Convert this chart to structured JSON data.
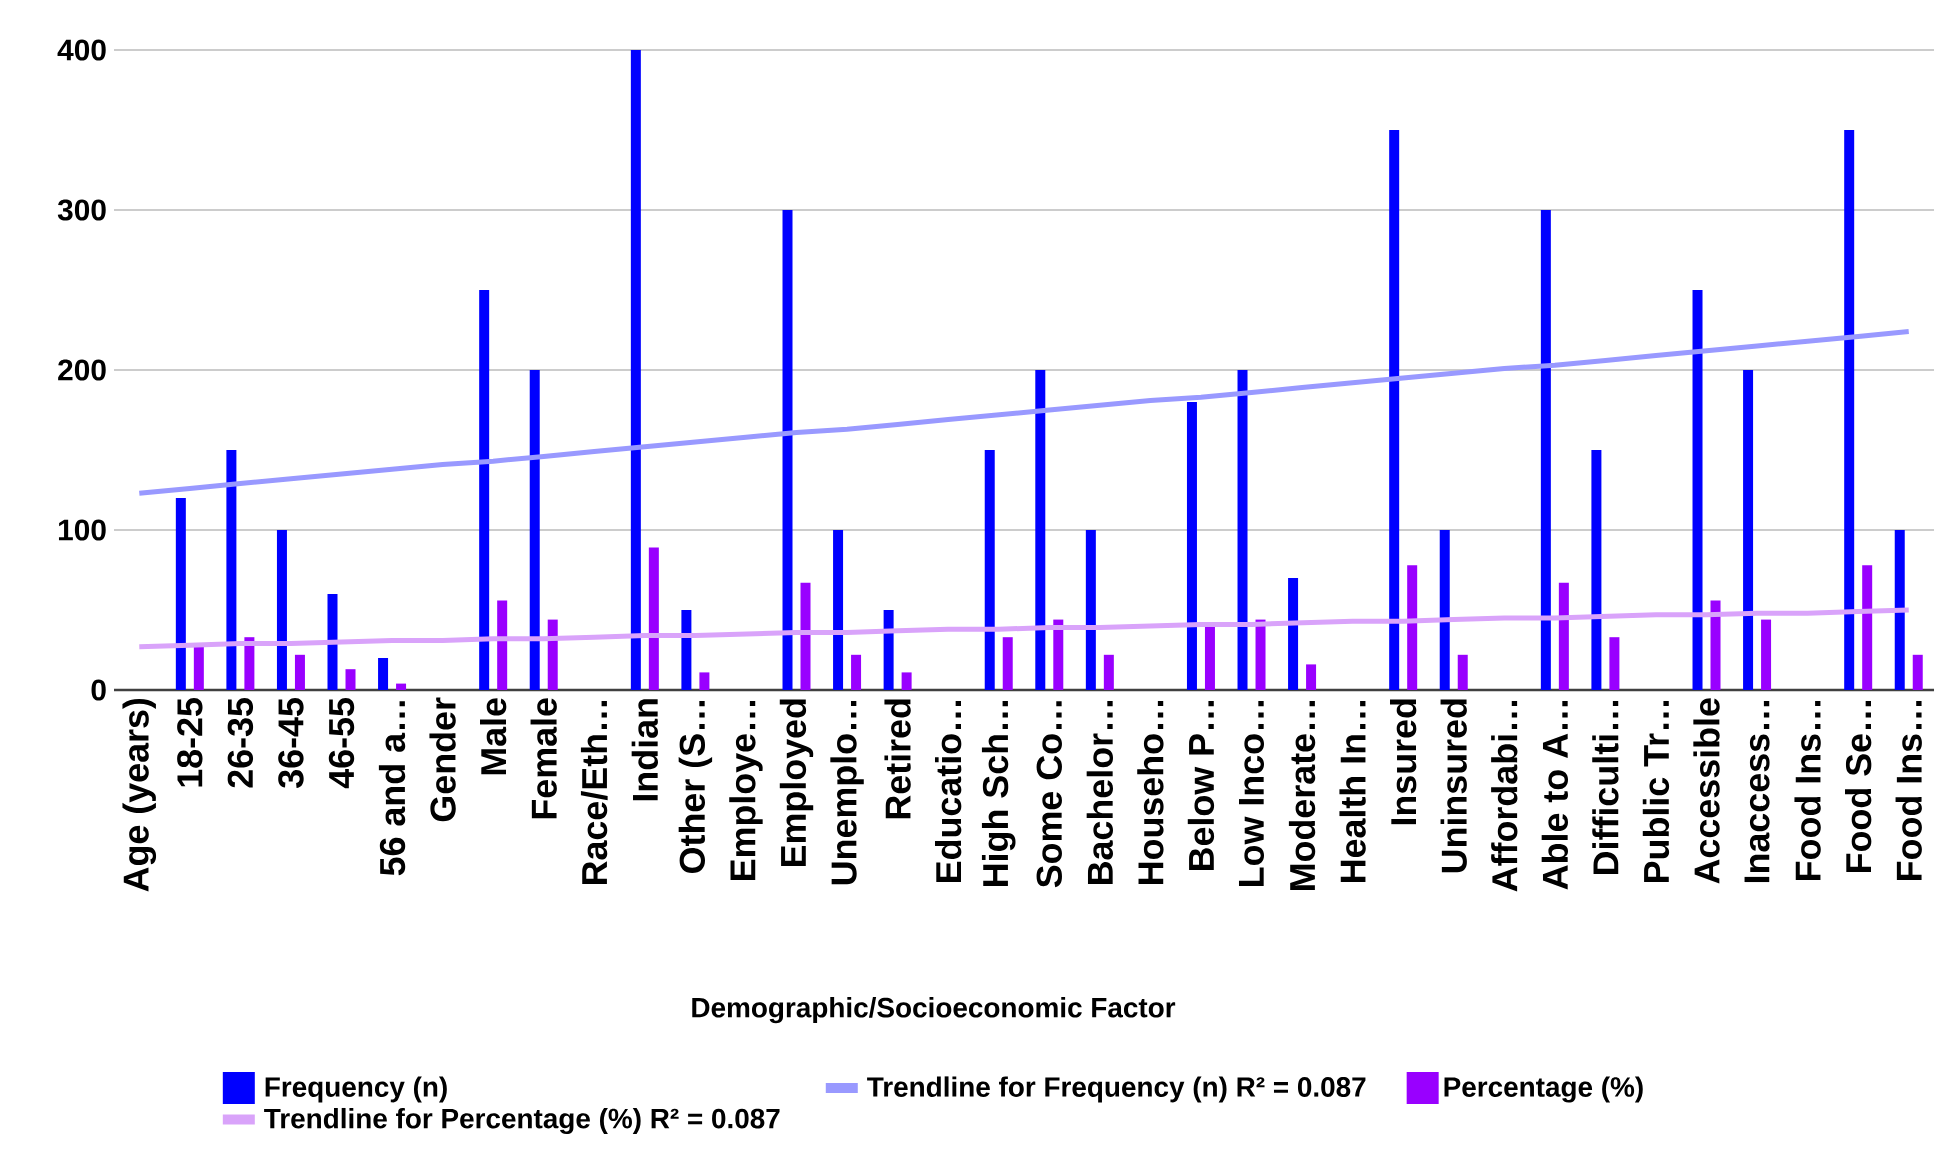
{
  "chart_data": {
    "type": "bar",
    "xlabel": "Demographic/Socioeconomic Factor",
    "categories": [
      "Age (years)",
      "18-25",
      "26-35",
      "36-45",
      "46-55",
      "56 and a…",
      "Gender",
      "Male",
      "Female",
      "Race/Eth…",
      "Indian",
      "Other (S…",
      "Employe…",
      "Employed",
      "Unemplo…",
      "Retired",
      "Educatio…",
      "High Sch…",
      "Some Co…",
      "Bachelor…",
      "Househo…",
      "Below P…",
      "Low Inco…",
      "Moderate…",
      "Health In…",
      "Insured",
      "Uninsured",
      "Affordabi…",
      "Able to A…",
      "Difficulti…",
      "Public Tr…",
      "Accessible",
      "Inaccess…",
      "Food Ins…",
      "Food Se…",
      "Food Ins…"
    ],
    "series": [
      {
        "name": "Frequency (n)",
        "color": "#0000ff",
        "values": [
          null,
          120,
          150,
          100,
          60,
          20,
          null,
          250,
          200,
          null,
          400,
          50,
          null,
          300,
          100,
          50,
          null,
          150,
          200,
          100,
          null,
          180,
          200,
          70,
          null,
          350,
          100,
          null,
          300,
          150,
          null,
          250,
          200,
          null,
          350,
          100
        ]
      },
      {
        "name": "Trendline for Frequency (n) R² = 0.087",
        "type": "line",
        "color": "#9999ff",
        "values": [
          123,
          126,
          129,
          132,
          135,
          138,
          141,
          143,
          146,
          149,
          152,
          155,
          158,
          161,
          163,
          166,
          169,
          172,
          175,
          178,
          181,
          183,
          186,
          189,
          192,
          195,
          198,
          201,
          203,
          206,
          209,
          212,
          215,
          218,
          221,
          224
        ]
      },
      {
        "name": "Percentage (%)",
        "color": "#9900ff",
        "values": [
          null,
          27,
          33,
          22,
          13,
          4,
          null,
          56,
          44,
          null,
          89,
          11,
          null,
          67,
          22,
          11,
          null,
          33,
          44,
          22,
          null,
          40,
          44,
          16,
          null,
          78,
          22,
          null,
          67,
          33,
          null,
          56,
          44,
          null,
          78,
          22
        ]
      },
      {
        "name": "Trendline for Percentage (%) R² = 0.087",
        "type": "line",
        "color": "#d9a3fa",
        "values": [
          27,
          28,
          29,
          29,
          30,
          31,
          31,
          32,
          32,
          33,
          34,
          34,
          35,
          36,
          36,
          37,
          38,
          38,
          39,
          39,
          40,
          41,
          41,
          42,
          43,
          43,
          44,
          45,
          45,
          46,
          47,
          47,
          48,
          48,
          49,
          50
        ]
      }
    ],
    "ylim": [
      0,
      400
    ],
    "yticks": [
      0,
      100,
      200,
      300,
      400
    ],
    "grid": "y",
    "legend": "bottom"
  }
}
